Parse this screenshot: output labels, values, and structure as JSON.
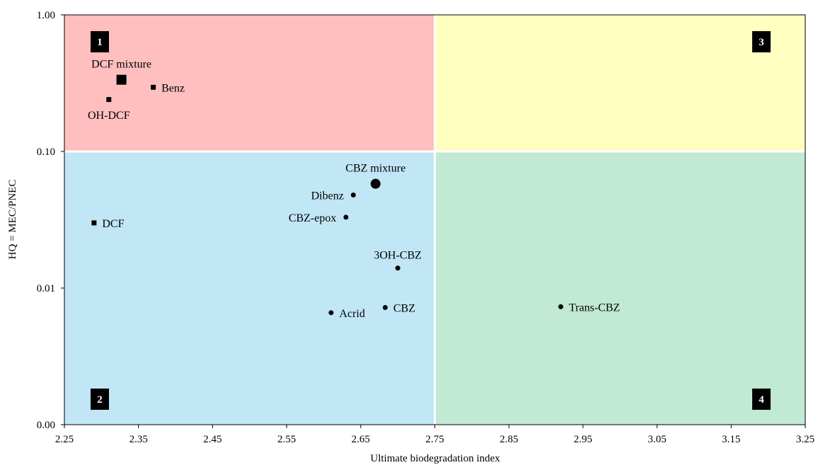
{
  "chart_data": {
    "type": "scatter",
    "xlabel": "Ultimate biodegradation  index",
    "ylabel": "HQ = MEC/PNEC",
    "xlim": [
      2.25,
      3.25
    ],
    "ylim": [
      0.001,
      1.0
    ],
    "y_scale": "log",
    "x_ticks": [
      "2.25",
      "2.35",
      "2.45",
      "2.55",
      "2.65",
      "2.75",
      "2.85",
      "2.95",
      "3.05",
      "3.15",
      "3.25"
    ],
    "y_ticks": [
      {
        "value": 1.0,
        "label": "1.00"
      },
      {
        "value": 0.1,
        "label": "0.10"
      },
      {
        "value": 0.01,
        "label": "0.01"
      },
      {
        "value": 0.001,
        "label": "0.00"
      }
    ],
    "thresholds": {
      "x": 2.75,
      "y": 0.1
    },
    "quadrants": [
      {
        "number": "1",
        "color": "#ffbfbf"
      },
      {
        "number": "2",
        "color": "#c1e6f6"
      },
      {
        "number": "3",
        "color": "#ffffc0"
      },
      {
        "number": "4",
        "color": "#c1e9d4"
      }
    ],
    "points": [
      {
        "label": "DCF mixture",
        "x": 2.327,
        "y": 0.335,
        "marker": "square",
        "size": "large",
        "label_pos": "above"
      },
      {
        "label": "Benz",
        "x": 2.37,
        "y": 0.295,
        "marker": "square",
        "size": "small",
        "label_pos": "right"
      },
      {
        "label": "OH-DCF",
        "x": 2.31,
        "y": 0.24,
        "marker": "square",
        "size": "small",
        "label_pos": "below"
      },
      {
        "label": "DCF",
        "x": 2.29,
        "y": 0.03,
        "marker": "square",
        "size": "small",
        "label_pos": "right"
      },
      {
        "label": "CBZ mixture",
        "x": 2.67,
        "y": 0.058,
        "marker": "circle",
        "size": "large",
        "label_pos": "above"
      },
      {
        "label": "Dibenz",
        "x": 2.64,
        "y": 0.048,
        "marker": "circle",
        "size": "small",
        "label_pos": "left"
      },
      {
        "label": "CBZ-epox",
        "x": 2.63,
        "y": 0.033,
        "marker": "circle",
        "size": "small",
        "label_pos": "left"
      },
      {
        "label": "3OH-CBZ",
        "x": 2.7,
        "y": 0.014,
        "marker": "circle",
        "size": "small",
        "label_pos": "above"
      },
      {
        "label": "CBZ",
        "x": 2.683,
        "y": 0.0072,
        "marker": "circle",
        "size": "small",
        "label_pos": "right"
      },
      {
        "label": "Acrid",
        "x": 2.61,
        "y": 0.0066,
        "marker": "circle",
        "size": "small",
        "label_pos": "right"
      },
      {
        "label": "Trans-CBZ",
        "x": 2.92,
        "y": 0.0073,
        "marker": "circle",
        "size": "small",
        "label_pos": "right"
      }
    ]
  }
}
